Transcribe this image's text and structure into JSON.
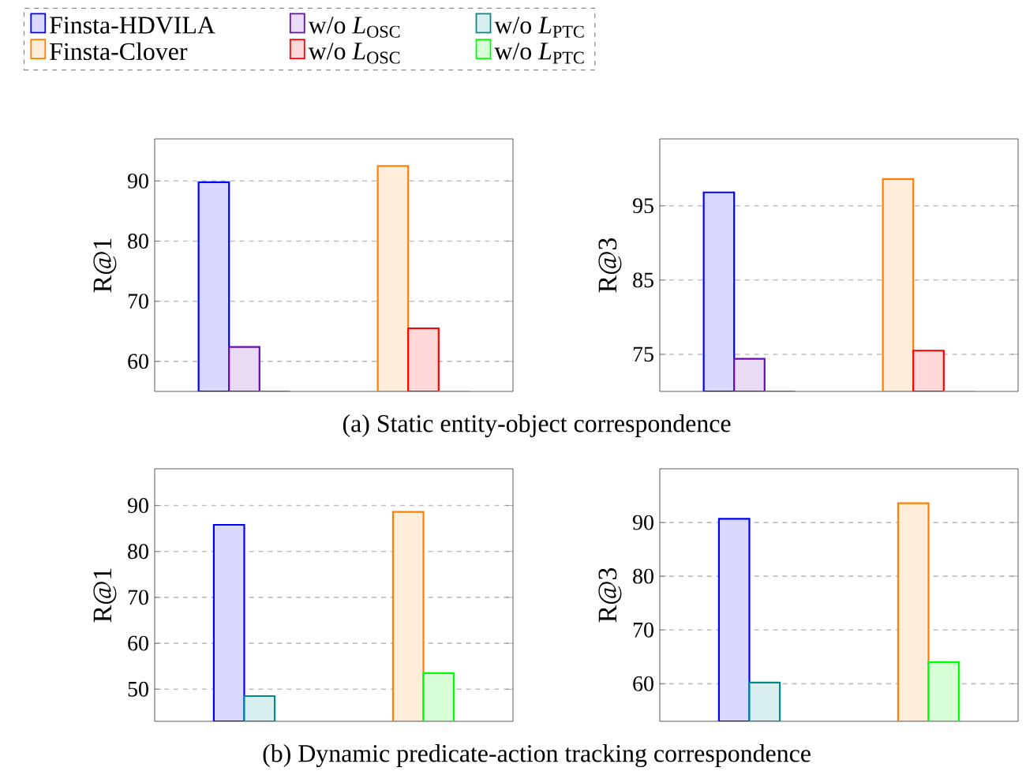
{
  "chart_data": [
    {
      "type": "bar",
      "ylabel": "R@1",
      "categories": [
        null,
        null
      ],
      "ylim": [
        55,
        97
      ],
      "yticks": [
        60,
        70,
        80,
        90
      ],
      "grid": "y",
      "legend": "top",
      "annotations": [
        "(a) Static entity-object correspondence"
      ],
      "series": [
        {
          "name": "Finsta-HDVILA",
          "color": "#0000ff",
          "values": [
            89.8,
            null
          ]
        },
        {
          "name": "w/o *L*$_{OSC}$",
          "color": "#6a0dad",
          "values": [
            62.4,
            null
          ]
        },
        {
          "name": "w/o *L*$_{PTC}$",
          "color": "#008b8b",
          "values": [
            55,
            null
          ]
        },
        {
          "name": "Finsta-Clover",
          "color": "#ff8000",
          "values": [
            null,
            92.5
          ]
        },
        {
          "name": "w/o *L*$_{OSC}$",
          "color": "#ff0000",
          "values": [
            null,
            65.5
          ]
        },
        {
          "name": "w/o *L*$_{PTC}$",
          "color": "#00ff00",
          "values": [
            null,
            55
          ]
        }
      ]
    },
    {
      "type": "bar",
      "ylabel": "R@3",
      "categories": [
        null,
        null
      ],
      "ylim": [
        70,
        104
      ],
      "yticks": [
        75,
        85,
        95
      ],
      "grid": "y",
      "series": [
        {
          "color": "#0000ff",
          "values": [
            96.8,
            null
          ]
        },
        {
          "color": "#6a0dad",
          "values": [
            74.4,
            null
          ]
        },
        {
          "color": "#008b8b",
          "values": [
            70,
            null
          ]
        },
        {
          "color": "#ff8000",
          "values": [
            null,
            98.6
          ]
        },
        {
          "color": "#ff0000",
          "values": [
            null,
            75.5
          ]
        },
        {
          "color": "#00ff00",
          "values": [
            null,
            70
          ]
        }
      ]
    },
    {
      "type": "bar",
      "ylabel": "R@1",
      "categories": [
        null,
        null
      ],
      "ylim": [
        43,
        98
      ],
      "yticks": [
        50,
        60,
        70,
        80,
        90
      ],
      "grid": "y",
      "annotations": [
        "(b) Dynamic predicate-action tracking correspondence"
      ],
      "series": [
        {
          "color": "#0000ff",
          "values": [
            85.8,
            null
          ]
        },
        {
          "color": "#008b8b",
          "values": [
            48.5,
            null
          ]
        },
        {
          "color": "#ff8000",
          "values": [
            null,
            88.6
          ]
        },
        {
          "color": "#00ff00",
          "values": [
            null,
            53.5
          ]
        }
      ]
    },
    {
      "type": "bar",
      "ylabel": "R@3",
      "categories": [
        null,
        null
      ],
      "ylim": [
        53,
        100
      ],
      "yticks": [
        60,
        70,
        80,
        90
      ],
      "grid": "y",
      "series": [
        {
          "color": "#0000ff",
          "values": [
            90.7,
            null
          ]
        },
        {
          "color": "#008b8b",
          "values": [
            60.2,
            null
          ]
        },
        {
          "color": "#ff8000",
          "values": [
            null,
            93.6
          ]
        },
        {
          "color": "#00ff00",
          "values": [
            null,
            64.0
          ]
        }
      ]
    }
  ]
}
